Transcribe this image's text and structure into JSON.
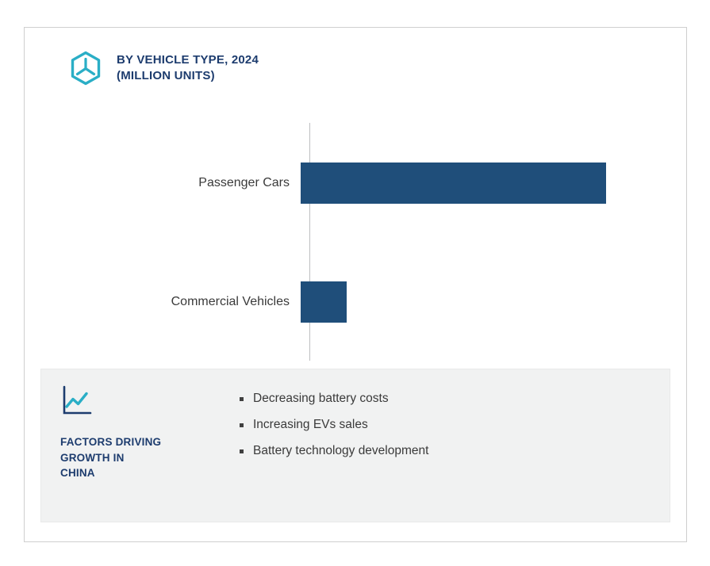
{
  "colors": {
    "accent": "#2aaec6",
    "bar": "#1f4e7a",
    "title": "#1d3c6e",
    "text": "#3a3a3a",
    "axis": "#bdbfc1",
    "panel_bg": "#f1f2f2",
    "border": "#cfcfcf"
  },
  "header": {
    "title_line1": "BY VEHICLE TYPE, 2024",
    "title_line2": "(MILLION UNITS)",
    "icon": "hexagon-cube-icon"
  },
  "chart_data": {
    "type": "bar",
    "orientation": "horizontal",
    "title": "BY VEHICLE TYPE, 2024 (MILLION UNITS)",
    "categories": [
      "Passenger Cars",
      "Commercial Vehicles"
    ],
    "values": [
      6.7,
      1.0
    ],
    "xlim": [
      0,
      8
    ],
    "xlabel": "",
    "ylabel": "",
    "grid": false,
    "legend": "none",
    "bar_color": "#1f4e7a",
    "value_labels_shown": false
  },
  "factors": {
    "icon": "line-chart-icon",
    "heading": "FACTORS DRIVING\nGROWTH IN\nCHINA",
    "items": [
      "Decreasing battery costs",
      "Increasing EVs sales",
      "Battery technology development"
    ]
  }
}
